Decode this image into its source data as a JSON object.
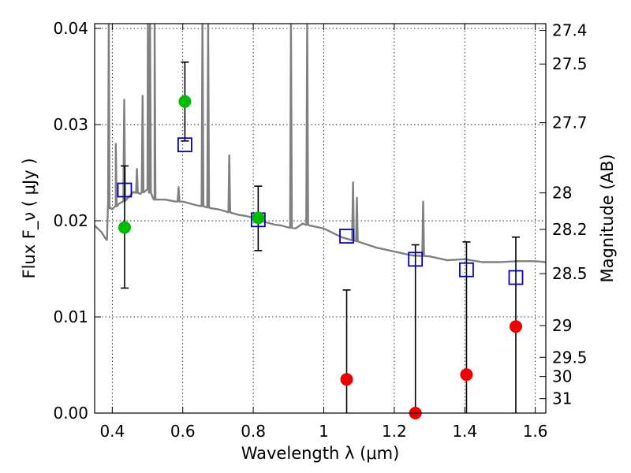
{
  "chart_data": {
    "type": "scatter",
    "xlabel": "Wavelength  λ (μm)",
    "ylabel": "Flux  F_ν  ( μJy )",
    "y2label": "Magnitude (AB)",
    "xlim": [
      0.35,
      1.63
    ],
    "ylim": [
      0.0,
      0.0405
    ],
    "grid": true,
    "x_ticks": [
      0.4,
      0.6,
      0.8,
      1.0,
      1.2,
      1.4,
      1.6
    ],
    "x_tick_labels": [
      "0.4",
      "0.6",
      "0.8",
      "1",
      "1.2",
      "1.4",
      "1.6"
    ],
    "y_ticks": [
      0.0,
      0.01,
      0.02,
      0.03,
      0.04
    ],
    "y_tick_labels": [
      "0.00",
      "0.01",
      "0.02",
      "0.03",
      "0.04"
    ],
    "y2_ticks": [
      {
        "label": "27.4",
        "flux": 0.0398
      },
      {
        "label": "27.5",
        "flux": 0.0363
      },
      {
        "label": "27.7",
        "flux": 0.0302
      },
      {
        "label": "28",
        "flux": 0.0229
      },
      {
        "label": "28.2",
        "flux": 0.0191
      },
      {
        "label": "28.5",
        "flux": 0.0145
      },
      {
        "label": "29",
        "flux": 0.0091
      },
      {
        "label": "29.5",
        "flux": 0.0058
      },
      {
        "label": "30",
        "flux": 0.0038
      },
      {
        "label": "31",
        "flux": 0.0015
      }
    ],
    "detections": {
      "color": "#00bb00",
      "points": [
        {
          "x": 0.435,
          "y": 0.0193,
          "err_low": 0.013,
          "err_high": 0.0257
        },
        {
          "x": 0.606,
          "y": 0.0324,
          "err_low": 0.0283,
          "err_high": 0.0365
        },
        {
          "x": 0.814,
          "y": 0.0203,
          "err_low": 0.0169,
          "err_high": 0.0236
        }
      ]
    },
    "non_detections": {
      "color": "#ee0000",
      "points": [
        {
          "x": 1.065,
          "y": 0.0035,
          "err_low": 0.0,
          "err_high": 0.0128
        },
        {
          "x": 1.26,
          "y": 0.0,
          "err_low": 0.0,
          "err_high": 0.0175
        },
        {
          "x": 1.405,
          "y": 0.004,
          "err_low": 0.0,
          "err_high": 0.0178
        },
        {
          "x": 1.545,
          "y": 0.009,
          "err_low": 0.0,
          "err_high": 0.0183
        }
      ]
    },
    "model_photometry": {
      "color": "#0000cc",
      "points": [
        {
          "x": 0.435,
          "y": 0.0232
        },
        {
          "x": 0.606,
          "y": 0.0279
        },
        {
          "x": 0.814,
          "y": 0.0201
        },
        {
          "x": 1.065,
          "y": 0.0184
        },
        {
          "x": 1.26,
          "y": 0.016
        },
        {
          "x": 1.405,
          "y": 0.0149
        },
        {
          "x": 1.545,
          "y": 0.0141
        }
      ]
    },
    "model_spectrum": {
      "color": "#808080",
      "x": [
        0.35,
        0.37,
        0.38,
        0.385,
        0.388,
        0.392,
        0.4,
        0.41,
        0.42,
        0.43,
        0.44,
        0.46,
        0.48,
        0.5,
        0.52,
        0.55,
        0.58,
        0.6,
        0.62,
        0.64,
        0.66,
        0.68,
        0.7,
        0.72,
        0.74,
        0.76,
        0.78,
        0.8,
        0.82,
        0.84,
        0.86,
        0.88,
        0.9,
        0.92,
        0.94,
        0.96,
        1.0,
        1.05,
        1.1,
        1.15,
        1.2,
        1.25,
        1.3,
        1.35,
        1.4,
        1.45,
        1.5,
        1.55,
        1.6,
        1.63
      ],
      "y": [
        0.0195,
        0.0188,
        0.0182,
        0.018,
        0.0215,
        0.0213,
        0.0212,
        0.0215,
        0.0218,
        0.022,
        0.0222,
        0.023,
        0.0228,
        0.0233,
        0.0222,
        0.0222,
        0.022,
        0.022,
        0.0218,
        0.0216,
        0.0215,
        0.0213,
        0.0212,
        0.021,
        0.0208,
        0.0206,
        0.0205,
        0.0203,
        0.02,
        0.0198,
        0.0196,
        0.0195,
        0.0193,
        0.0192,
        0.0197,
        0.0195,
        0.0192,
        0.0183,
        0.0178,
        0.0172,
        0.0168,
        0.0164,
        0.0163,
        0.0159,
        0.016,
        0.0157,
        0.0157,
        0.0158,
        0.0158,
        0.0157
      ],
      "emission_lines": [
        {
          "x": 0.39,
          "peak": 0.041
        },
        {
          "x": 0.41,
          "peak": 0.028
        },
        {
          "x": 0.434,
          "peak": 0.0326
        },
        {
          "x": 0.47,
          "peak": 0.0254
        },
        {
          "x": 0.486,
          "peak": 0.033
        },
        {
          "x": 0.501,
          "peak": 0.041
        },
        {
          "x": 0.507,
          "peak": 0.041
        },
        {
          "x": 0.52,
          "peak": 0.041
        },
        {
          "x": 0.588,
          "peak": 0.0235
        },
        {
          "x": 0.656,
          "peak": 0.041
        },
        {
          "x": 0.672,
          "peak": 0.041
        },
        {
          "x": 0.732,
          "peak": 0.0268
        },
        {
          "x": 0.907,
          "peak": 0.041
        },
        {
          "x": 0.953,
          "peak": 0.041
        },
        {
          "x": 1.083,
          "peak": 0.024
        },
        {
          "x": 1.094,
          "peak": 0.0224
        },
        {
          "x": 1.282,
          "peak": 0.022
        }
      ]
    }
  }
}
